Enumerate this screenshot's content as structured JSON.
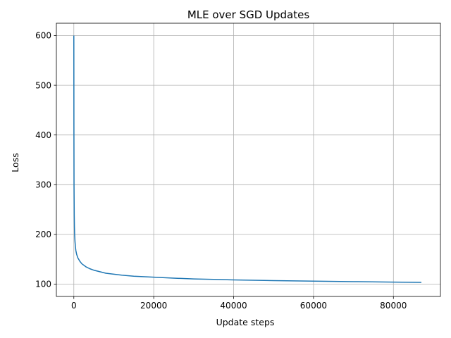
{
  "chart_data": {
    "type": "line",
    "title": "MLE over SGD Updates",
    "xlabel": "Update steps",
    "ylabel": "Loss",
    "xlim": [
      -4370,
      91770
    ],
    "ylim": [
      75.2,
      624.8
    ],
    "xticks": [
      0,
      20000,
      40000,
      60000,
      80000
    ],
    "yticks": [
      100,
      200,
      300,
      400,
      500,
      600
    ],
    "grid": true,
    "legend": "none",
    "series": [
      {
        "color": "#1f77b4",
        "x": [
          0,
          20,
          50,
          100,
          150,
          200,
          300,
          400,
          500,
          700,
          1000,
          1500,
          2000,
          3000,
          4000,
          5000,
          6000,
          8000,
          10000,
          12000,
          15000,
          20000,
          25000,
          30000,
          35000,
          40000,
          50000,
          60000,
          70000,
          80000,
          87000
        ],
        "y": [
          600,
          420,
          300,
          240,
          215,
          200,
          185,
          175,
          168,
          160,
          153,
          146,
          141,
          135,
          131,
          128,
          126,
          122,
          120,
          118,
          116,
          114,
          112,
          110.5,
          109.5,
          108.5,
          107,
          106,
          105,
          104,
          103.5
        ]
      }
    ]
  }
}
